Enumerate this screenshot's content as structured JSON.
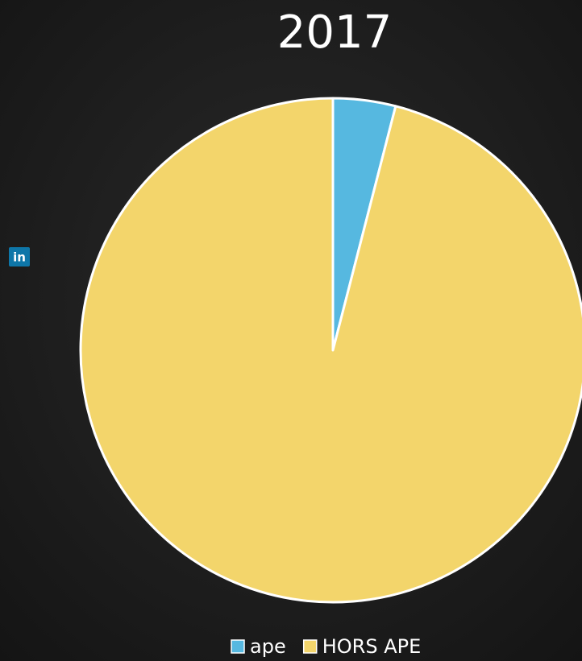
{
  "icon_label": "in",
  "chart_data": {
    "type": "pie",
    "title": "2017",
    "categories": [
      "ape",
      "HORS APE"
    ],
    "values": [
      4,
      96
    ],
    "colors": [
      "#56b8e0",
      "#f3d56b"
    ],
    "legend": "bottom"
  }
}
